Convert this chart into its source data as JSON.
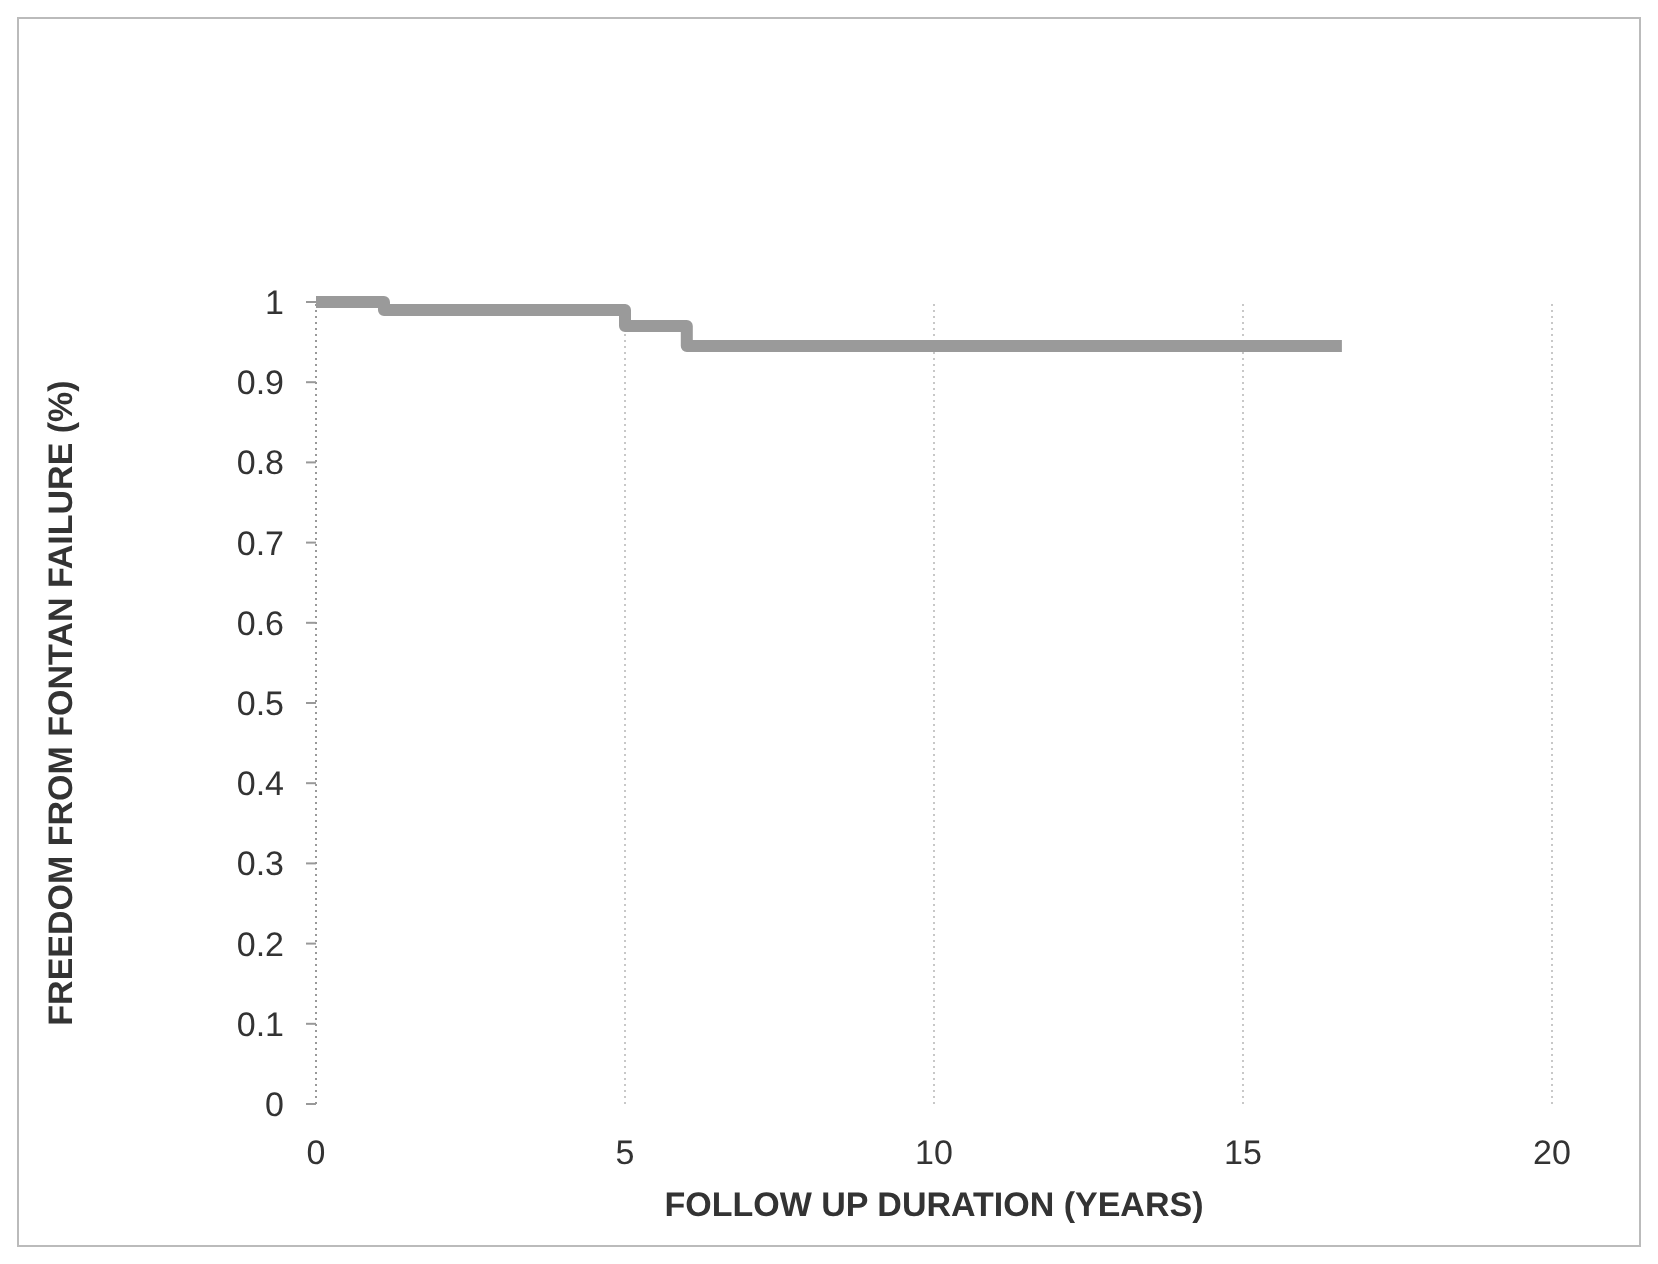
{
  "chart_data": {
    "type": "step",
    "xlabel": "FOLLOW UP DURATION (YEARS)",
    "ylabel": "FREEDOM FROM FONTAN FAILURE (%)",
    "x": [
      0,
      1.1,
      5,
      6,
      16.6
    ],
    "series": [
      {
        "color": "#9a9a9a",
        "values": [
          1,
          0.99,
          0.97,
          0.945,
          0.945
        ]
      }
    ],
    "xlim": [
      0,
      20
    ],
    "xticks": [
      0,
      5,
      10,
      15,
      20
    ],
    "ylim": [
      0,
      1
    ],
    "yticks": [
      0,
      0.1,
      0.2,
      0.3,
      0.4,
      0.5,
      0.6,
      0.7,
      0.8,
      0.9,
      1
    ],
    "grid": "x"
  }
}
